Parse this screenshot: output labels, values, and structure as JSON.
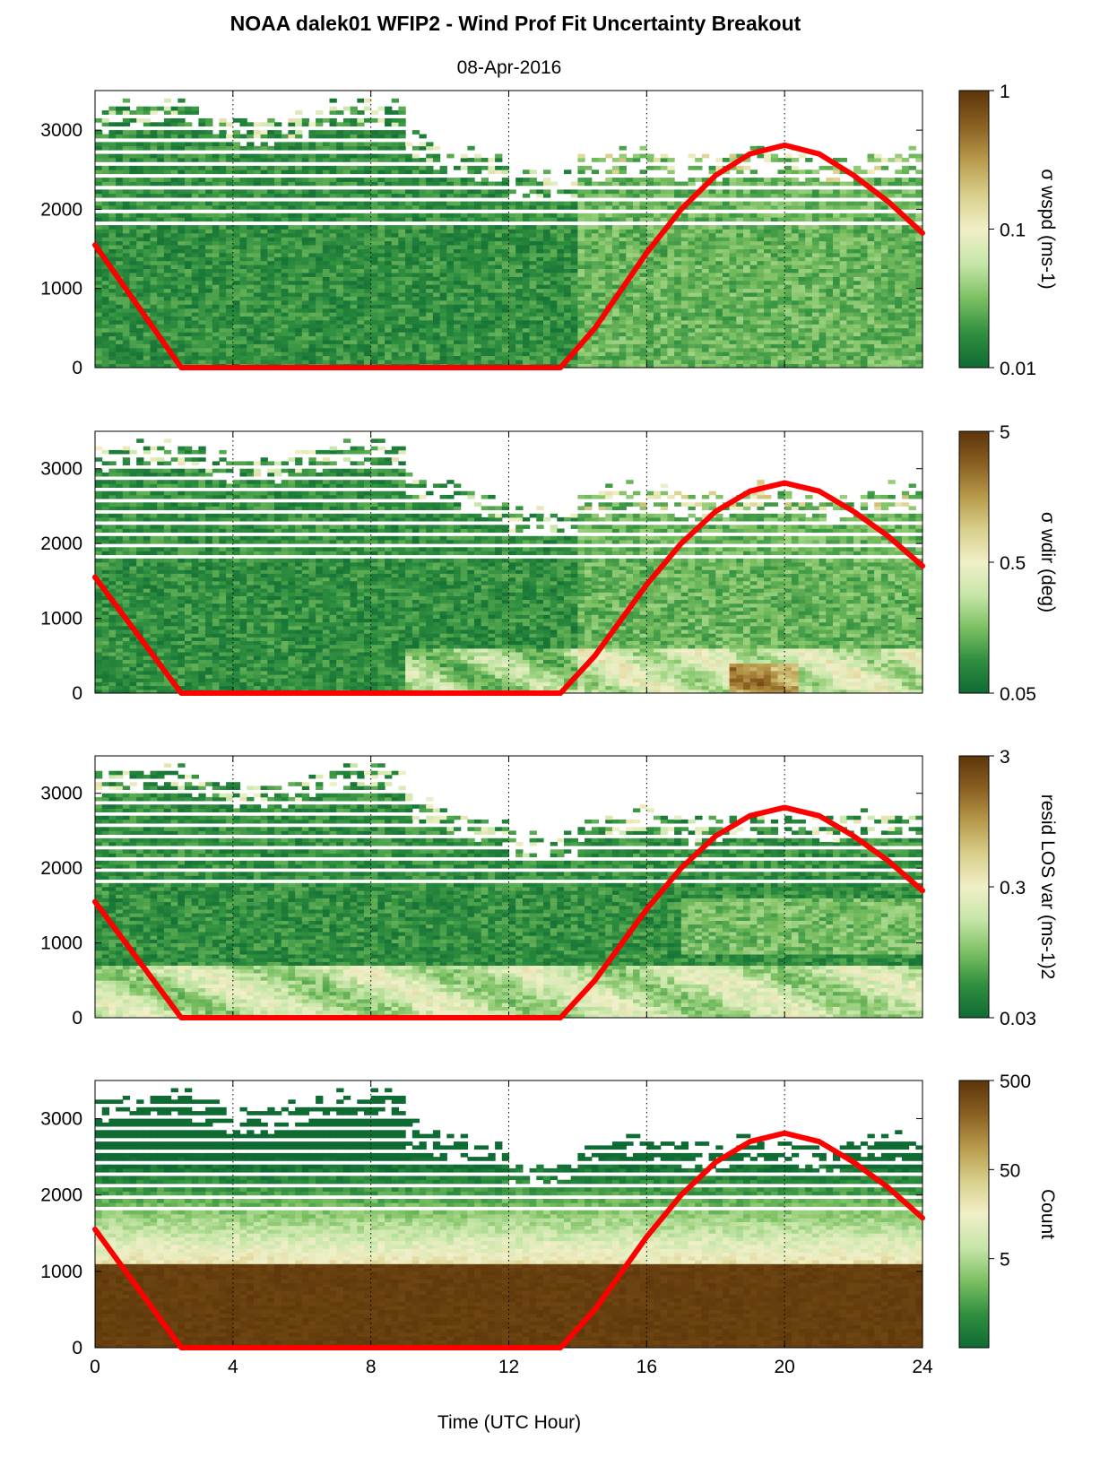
{
  "title": "NOAA dalek01 WFIP2 - Wind Prof Fit Uncertainty Breakout",
  "subtitle": "08-Apr-2016",
  "xlabel": "Time (UTC Hour)",
  "x_ticks": [
    "0",
    "4",
    "8",
    "12",
    "16",
    "20",
    "24"
  ],
  "y_ticks": [
    "0",
    "1000",
    "2000",
    "3000"
  ],
  "colors": {
    "overlay_line": "#ff0000",
    "colormap": [
      "#0f6b34",
      "#2f8f3f",
      "#7cc062",
      "#c6e6a8",
      "#f1efc8",
      "#d8cf8a",
      "#b89a4c",
      "#8a5f21",
      "#5c3509"
    ]
  },
  "chart_data": [
    {
      "type": "heatmap",
      "panel": "sigma wspd",
      "colorbar_label": "σ wspd (ms-1)",
      "colorbar_scale": "log",
      "colorbar_ticks": [
        "0.01",
        "0.1",
        "1"
      ],
      "clim": [
        0.01,
        1
      ],
      "xlim": [
        0,
        24
      ],
      "ylim": [
        0,
        3500
      ],
      "grid": "vertical dotted lines at x ticks",
      "overlay_series": {
        "x": [
          0,
          2.5,
          13.5,
          14.5,
          16,
          17,
          18,
          19,
          20,
          21,
          22,
          23,
          24
        ],
        "y": [
          1550,
          0,
          0,
          500,
          1450,
          2000,
          2430,
          2700,
          2810,
          2700,
          2430,
          2100,
          1700
        ]
      }
    },
    {
      "type": "heatmap",
      "panel": "sigma wdir",
      "colorbar_label": "σ wdir (deg)",
      "colorbar_scale": "log",
      "colorbar_ticks": [
        "0.05",
        "0.5",
        "5"
      ],
      "clim": [
        0.05,
        5
      ],
      "xlim": [
        0,
        24
      ],
      "ylim": [
        0,
        3500
      ],
      "grid": "vertical dotted lines at x ticks",
      "overlay_series": {
        "x": [
          0,
          2.5,
          13.5,
          14.5,
          16,
          17,
          18,
          19,
          20,
          21,
          22,
          23,
          24
        ],
        "y": [
          1550,
          0,
          0,
          500,
          1450,
          2000,
          2430,
          2700,
          2810,
          2700,
          2430,
          2100,
          1700
        ]
      }
    },
    {
      "type": "heatmap",
      "panel": "resid LOS var",
      "colorbar_label": "resid LOS var (ms-1)2",
      "colorbar_scale": "log",
      "colorbar_ticks": [
        "0.03",
        "0.3",
        "3"
      ],
      "clim": [
        0.03,
        3
      ],
      "xlim": [
        0,
        24
      ],
      "ylim": [
        0,
        3500
      ],
      "grid": "vertical dotted lines at x ticks",
      "overlay_series": {
        "x": [
          0,
          2.5,
          13.5,
          14.5,
          16,
          17,
          18,
          19,
          20,
          21,
          22,
          23,
          24
        ],
        "y": [
          1550,
          0,
          0,
          500,
          1450,
          2000,
          2430,
          2700,
          2810,
          2700,
          2430,
          2100,
          1700
        ]
      }
    },
    {
      "type": "heatmap",
      "panel": "Count",
      "colorbar_label": "Count",
      "colorbar_scale": "log",
      "colorbar_ticks": [
        "5",
        "50",
        "500"
      ],
      "clim": [
        0.5,
        500
      ],
      "xlim": [
        0,
        24
      ],
      "ylim": [
        0,
        3500
      ],
      "grid": "vertical dotted lines at x ticks",
      "overlay_series": {
        "x": [
          0,
          2.5,
          13.5,
          14.5,
          16,
          17,
          18,
          19,
          20,
          21,
          22,
          23,
          24
        ],
        "y": [
          1550,
          0,
          0,
          500,
          1450,
          2000,
          2430,
          2700,
          2810,
          2700,
          2430,
          2100,
          1700
        ]
      }
    }
  ]
}
